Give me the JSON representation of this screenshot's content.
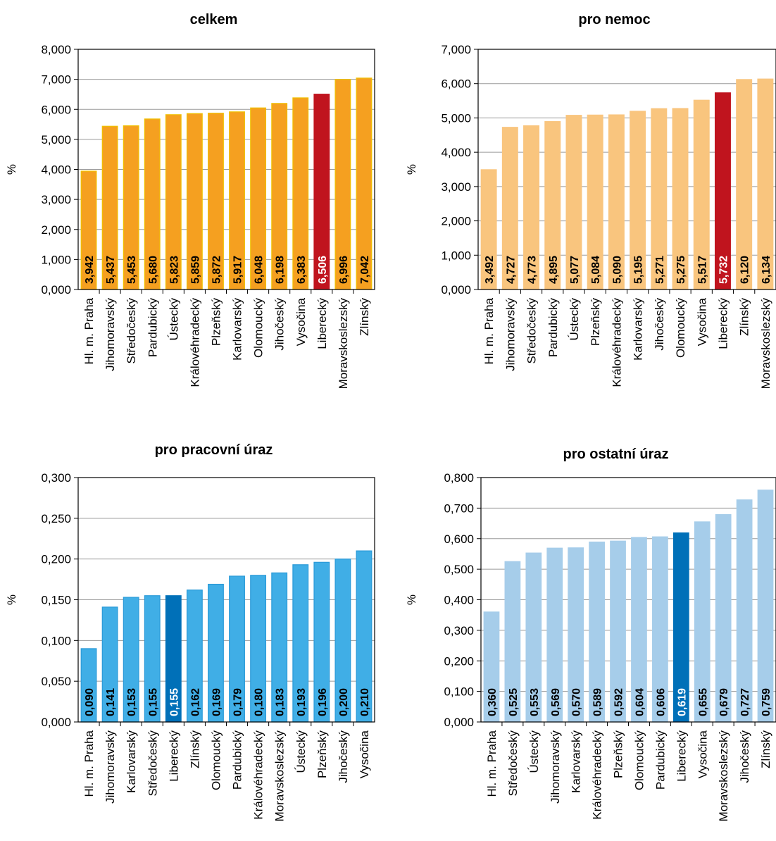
{
  "chart_data": [
    {
      "type": "bar",
      "title": "celkem",
      "ylabel": "%",
      "ylim": [
        0,
        8
      ],
      "yticks": [
        "0,000",
        "1,000",
        "2,000",
        "3,000",
        "4,000",
        "5,000",
        "6,000",
        "7,000",
        "8,000"
      ],
      "grid": true,
      "categories": [
        "Hl. m. Praha",
        "Jihomoravský",
        "Středočeský",
        "Pardubický",
        "Ústecký",
        "Královéhradecký",
        "Plzeňský",
        "Karlovarský",
        "Olomoucký",
        "Jihočeský",
        "Vysočina",
        "Liberecký",
        "Moravskoslezský",
        "Zlínský"
      ],
      "values": [
        3.942,
        5.437,
        5.453,
        5.68,
        5.823,
        5.859,
        5.872,
        5.917,
        6.048,
        6.198,
        6.383,
        6.506,
        6.996,
        7.042
      ],
      "labels": [
        "3,942",
        "5,437",
        "5,453",
        "5,680",
        "5,823",
        "5,859",
        "5,872",
        "5,917",
        "6,048",
        "6,198",
        "6,383",
        "6,506",
        "6,996",
        "7,042"
      ],
      "highlight": "Liberecký",
      "colors": {
        "bar": "#f5a020",
        "highlight": "#c0141e",
        "edge": "#f0c000",
        "label": "#000000",
        "highlight_label": "#ffffff"
      }
    },
    {
      "type": "bar",
      "title": "pro nemoc",
      "ylabel": "%",
      "ylim": [
        0,
        7
      ],
      "yticks": [
        "0,000",
        "1,000",
        "2,000",
        "3,000",
        "4,000",
        "5,000",
        "6,000",
        "7,000"
      ],
      "grid": true,
      "categories": [
        "Hl. m. Praha",
        "Jihomoravský",
        "Středočeský",
        "Pardubický",
        "Ústecký",
        "Plzeňský",
        "Královéhradecký",
        "Karlovarský",
        "Jihočeský",
        "Olomoucký",
        "Vysočina",
        "Liberecký",
        "Zlínský",
        "Moravskoslezský"
      ],
      "values": [
        3.492,
        4.727,
        4.773,
        4.895,
        5.077,
        5.084,
        5.09,
        5.195,
        5.271,
        5.275,
        5.517,
        5.732,
        6.12,
        6.134
      ],
      "labels": [
        "3,492",
        "4,727",
        "4,773",
        "4,895",
        "5,077",
        "5,084",
        "5,090",
        "5,195",
        "5,271",
        "5,275",
        "5,517",
        "5,732",
        "6,120",
        "6,134"
      ],
      "highlight": "Liberecký",
      "colors": {
        "bar": "#f9c57e",
        "highlight": "#c0141e",
        "edge": "#f9c57e",
        "label": "#000000",
        "highlight_label": "#ffffff"
      }
    },
    {
      "type": "bar",
      "title": "pro pracovní úraz",
      "ylabel": "%",
      "ylim": [
        0,
        0.3
      ],
      "yticks": [
        "0,000",
        "0,050",
        "0,100",
        "0,150",
        "0,200",
        "0,250",
        "0,300"
      ],
      "grid": true,
      "categories": [
        "Hl. m. Praha",
        "Jihomoravský",
        "Karlovarský",
        "Středočeský",
        "Liberecký",
        "Zlínský",
        "Olomoucký",
        "Pardubický",
        "Královéhradecký",
        "Moravskoslezský",
        "Ústecký",
        "Plzeňský",
        "Jihočeský",
        "Vysočina"
      ],
      "values": [
        0.09,
        0.141,
        0.153,
        0.155,
        0.155,
        0.162,
        0.169,
        0.179,
        0.18,
        0.183,
        0.193,
        0.196,
        0.2,
        0.21
      ],
      "labels": [
        "0,090",
        "0,141",
        "0,153",
        "0,155",
        "0,155",
        "0,162",
        "0,169",
        "0,179",
        "0,180",
        "0,183",
        "0,193",
        "0,196",
        "0,200",
        "0,210"
      ],
      "highlight": "Liberecký",
      "colors": {
        "bar": "#40aee6",
        "highlight": "#0070b8",
        "edge": "#2a9ad8",
        "label": "#000000",
        "highlight_label": "#ffffff"
      }
    },
    {
      "type": "bar",
      "title": "pro ostatní úraz",
      "ylabel": "%",
      "ylim": [
        0,
        0.8
      ],
      "yticks": [
        "0,000",
        "0,100",
        "0,200",
        "0,300",
        "0,400",
        "0,500",
        "0,600",
        "0,700",
        "0,800"
      ],
      "grid": true,
      "categories": [
        "Hl. m. Praha",
        "Středočeský",
        "Ústecký",
        "Jihomoravský",
        "Karlovarský",
        "Královéhradecký",
        "Plzeňský",
        "Olomoucký",
        "Pardubický",
        "Liberecký",
        "Vysočina",
        "Moravskoslezský",
        "Jihočeský",
        "Zlínský"
      ],
      "values": [
        0.36,
        0.525,
        0.553,
        0.569,
        0.57,
        0.589,
        0.592,
        0.604,
        0.606,
        0.619,
        0.655,
        0.679,
        0.727,
        0.759
      ],
      "labels": [
        "0,360",
        "0,525",
        "0,553",
        "0,569",
        "0,570",
        "0,589",
        "0,592",
        "0,604",
        "0,606",
        "0,619",
        "0,655",
        "0,679",
        "0,727",
        "0,759"
      ],
      "highlight": "Liberecký",
      "colors": {
        "bar": "#a6cdea",
        "highlight": "#0070b8",
        "edge": "#a6cdea",
        "label": "#000000",
        "highlight_label": "#ffffff"
      }
    }
  ]
}
